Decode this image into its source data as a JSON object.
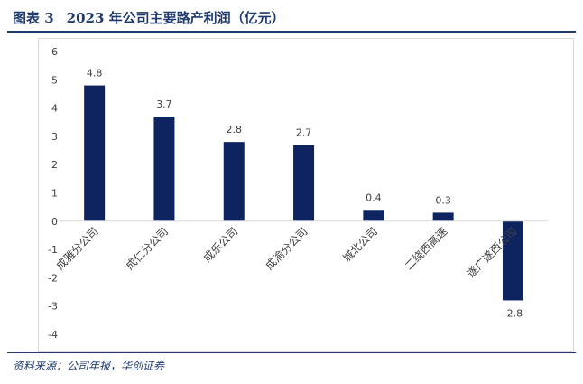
{
  "figure": {
    "label": "图表 3",
    "title": "2023 年公司主要路产利润（亿元）",
    "source": "资料来源：公司年报，华创证券"
  },
  "colors": {
    "bar": "#0d2460",
    "axis": "#d9d9d9",
    "text": "#404040",
    "accent": "#1f3a6e"
  },
  "chart_data": {
    "type": "bar",
    "title": "2023 年公司主要路产利润（亿元）",
    "xlabel": "",
    "ylabel": "",
    "categories": [
      "成雅分公司",
      "成仁分公司",
      "成乐公司",
      "成渝分公司",
      "城北公司",
      "二绕西高速",
      "遂广遂西公司"
    ],
    "values": [
      4.8,
      3.7,
      2.8,
      2.7,
      0.4,
      0.3,
      -2.8
    ],
    "data_labels": [
      "4.8",
      "3.7",
      "2.8",
      "2.7",
      "0.4",
      "0.3",
      "-2.8"
    ],
    "ylim": [
      -4,
      6
    ],
    "yticks": [
      6,
      5,
      4,
      3,
      2,
      1,
      0,
      -1,
      -2,
      -3,
      -4
    ],
    "ytick_labels": [
      "6",
      "5",
      "4",
      "3",
      "2",
      "1",
      "0",
      "-1",
      "-2",
      "-3",
      "-4"
    ],
    "grid": false,
    "legend": "none"
  }
}
